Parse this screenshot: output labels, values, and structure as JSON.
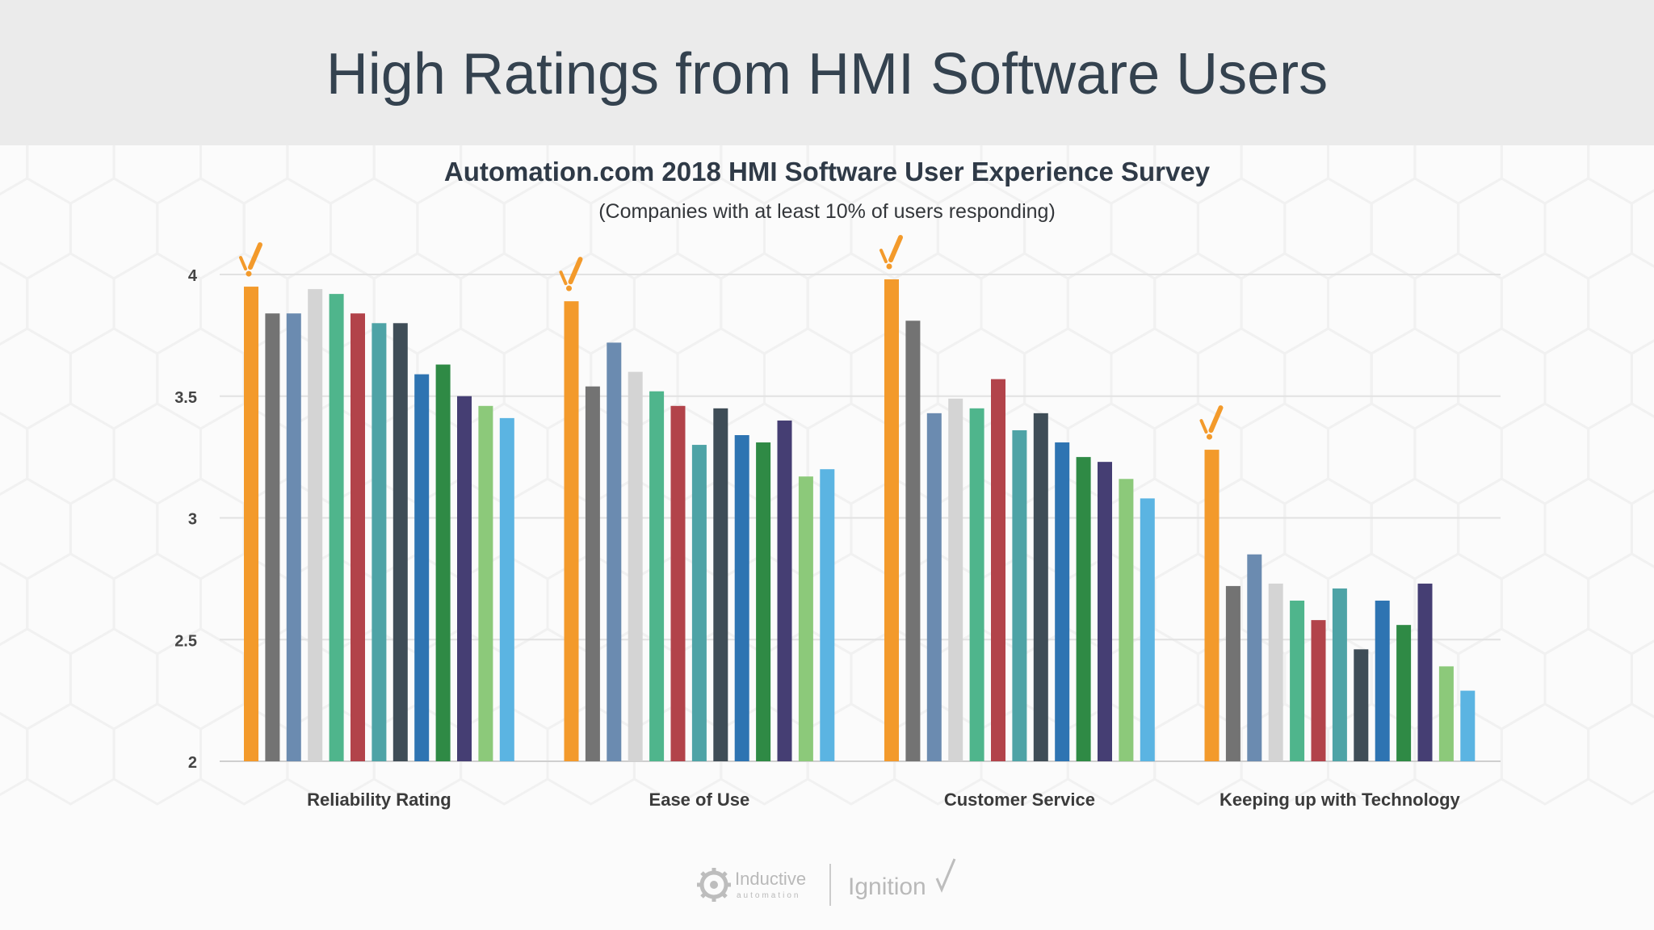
{
  "header": {
    "title": "High Ratings from HMI Software Users"
  },
  "chart_data": {
    "type": "bar",
    "title": "Automation.com 2018 HMI Software User Experience Survey",
    "subtitle": "(Companies with at least 10% of users responding)",
    "xlabel": "",
    "ylabel": "",
    "ylim": [
      2,
      4
    ],
    "yticks": [
      "2",
      "2.5",
      "3",
      "3.5",
      "4"
    ],
    "grid": true,
    "categories": [
      "Reliability Rating",
      "Ease of Use",
      "Customer Service",
      "Keeping up with Technology"
    ],
    "series": [
      {
        "color": "#f39a2b",
        "values": [
          3.95,
          3.89,
          3.98,
          3.28
        ]
      },
      {
        "color": "#737373",
        "values": [
          3.84,
          3.54,
          3.81,
          2.72
        ]
      },
      {
        "color": "#6b8bb0",
        "values": [
          3.84,
          3.72,
          3.43,
          2.85
        ]
      },
      {
        "color": "#d4d4d4",
        "values": [
          3.94,
          3.6,
          3.49,
          2.73
        ]
      },
      {
        "color": "#4fb58c",
        "values": [
          3.92,
          3.52,
          3.45,
          2.66
        ]
      },
      {
        "color": "#b2434a",
        "values": [
          3.84,
          3.46,
          3.57,
          2.58
        ]
      },
      {
        "color": "#4ea3a6",
        "values": [
          3.8,
          3.3,
          3.36,
          2.71
        ]
      },
      {
        "color": "#3f4d57",
        "values": [
          3.8,
          3.45,
          3.43,
          2.46
        ]
      },
      {
        "color": "#2e74b2",
        "values": [
          3.59,
          3.34,
          3.31,
          2.66
        ]
      },
      {
        "color": "#2f8a45",
        "values": [
          3.63,
          3.31,
          3.25,
          2.56
        ]
      },
      {
        "color": "#453e73",
        "values": [
          3.5,
          3.4,
          3.23,
          2.73
        ]
      },
      {
        "color": "#8cc97a",
        "values": [
          3.46,
          3.17,
          3.16,
          2.39
        ]
      },
      {
        "color": "#5bb4e2",
        "values": [
          3.41,
          3.2,
          3.08,
          2.29
        ]
      }
    ],
    "highlight": {
      "series_index": 0,
      "marker_icon": "ignition-check-icon",
      "color": "#f39a2b"
    }
  },
  "footer": {
    "logo_left": "Inductive",
    "logo_left_sub": "automation",
    "logo_right": "Ignition"
  }
}
